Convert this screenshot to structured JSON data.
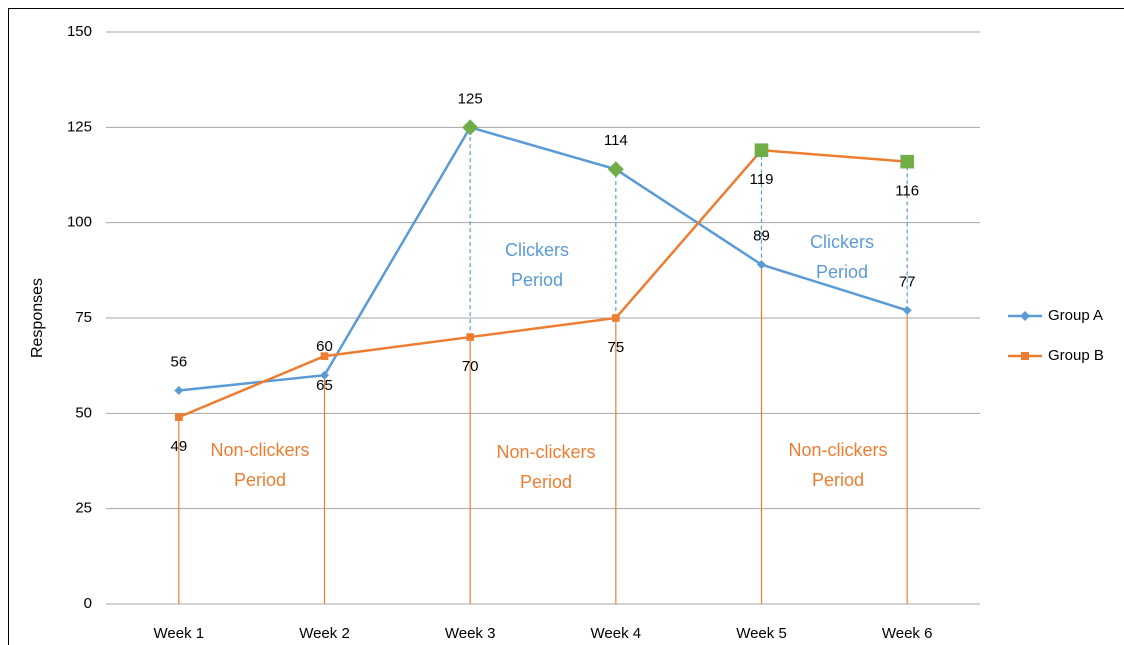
{
  "chart_data": {
    "type": "line",
    "y_label": "Responses",
    "categories": [
      "Week 1",
      "Week 2",
      "Week 3",
      "Week 4",
      "Week 5",
      "Week 6"
    ],
    "series": [
      {
        "name": "Group A",
        "color": "#5b9bd5",
        "marker": "diamond",
        "values": [
          56,
          60,
          125,
          114,
          89,
          77
        ],
        "highlight": [
          false,
          false,
          true,
          true,
          false,
          false
        ]
      },
      {
        "name": "Group B",
        "color": "#ed7d31",
        "marker": "square",
        "values": [
          49,
          65,
          70,
          75,
          119,
          116
        ],
        "highlight": [
          false,
          false,
          false,
          false,
          true,
          true
        ]
      }
    ],
    "highlight_color": "#70ad47",
    "ylim": [
      0,
      150
    ],
    "yticks": [
      0,
      25,
      50,
      75,
      100,
      125,
      150
    ],
    "grid": true,
    "legend": "right",
    "annotations": [
      {
        "lines": [
          "Non-clickers",
          "Period"
        ],
        "color": "#ed7d31"
      },
      {
        "lines": [
          "Clickers",
          "Period"
        ],
        "color": "#5b9bd5"
      },
      {
        "lines": [
          "Non-clickers",
          "Period"
        ],
        "color": "#ed7d31"
      },
      {
        "lines": [
          "Clickers",
          "Period"
        ],
        "color": "#5b9bd5"
      },
      {
        "lines": [
          "Non-clickers",
          "Period"
        ],
        "color": "#ed7d31"
      }
    ]
  }
}
